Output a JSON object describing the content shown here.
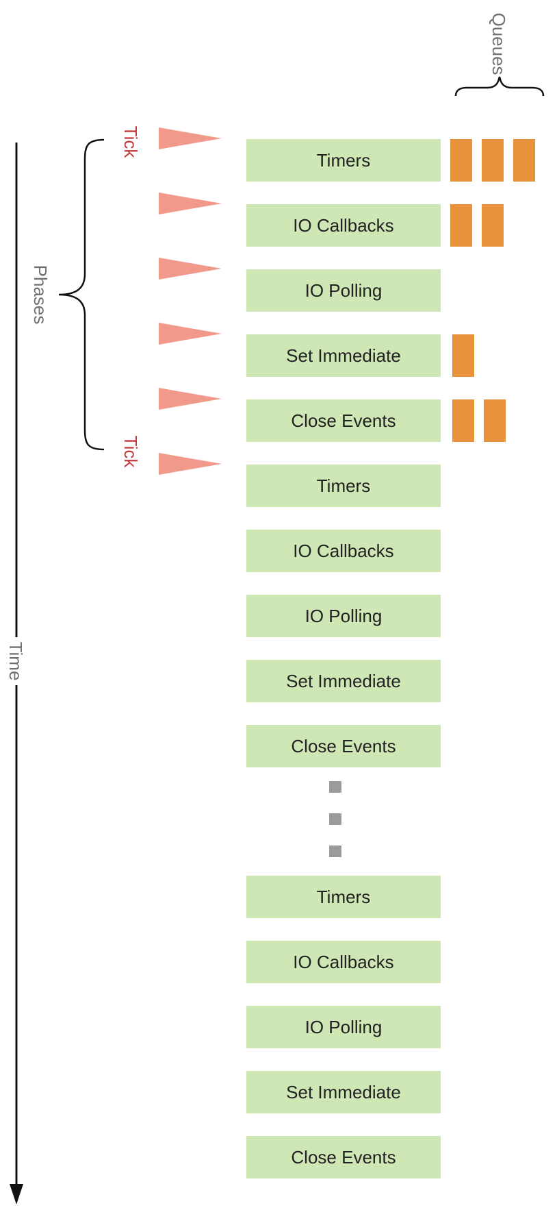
{
  "labels": {
    "time": "Time",
    "phases": "Phases",
    "queues": "Queues",
    "tick_start": "Tick",
    "tick_end": "Tick"
  },
  "colors": {
    "phase_fill": "#cfe6b5",
    "queue_fill": "#e8923b",
    "tick_marker": "#f19a8c",
    "tick_text": "#c0393b",
    "ellipsis_dots": "#9b9b9b"
  },
  "cycles": [
    {
      "phases": [
        {
          "label": "Timers",
          "queue_items": 3
        },
        {
          "label": "IO Callbacks",
          "queue_items": 2
        },
        {
          "label": "IO Polling",
          "queue_items": 0
        },
        {
          "label": "Set Immediate",
          "queue_items": 1
        },
        {
          "label": "Close Events",
          "queue_items": 2
        }
      ]
    },
    {
      "phases": [
        {
          "label": "Timers"
        },
        {
          "label": "IO Callbacks"
        },
        {
          "label": "IO Polling"
        },
        {
          "label": "Set Immediate"
        },
        {
          "label": "Close Events"
        }
      ]
    },
    {
      "phases": [
        {
          "label": "Timers"
        },
        {
          "label": "IO Callbacks"
        },
        {
          "label": "IO Polling"
        },
        {
          "label": "Set Immediate"
        },
        {
          "label": "Close Events"
        }
      ]
    }
  ],
  "ellipsis_dot_count": 3,
  "tick_markers_count": 6
}
